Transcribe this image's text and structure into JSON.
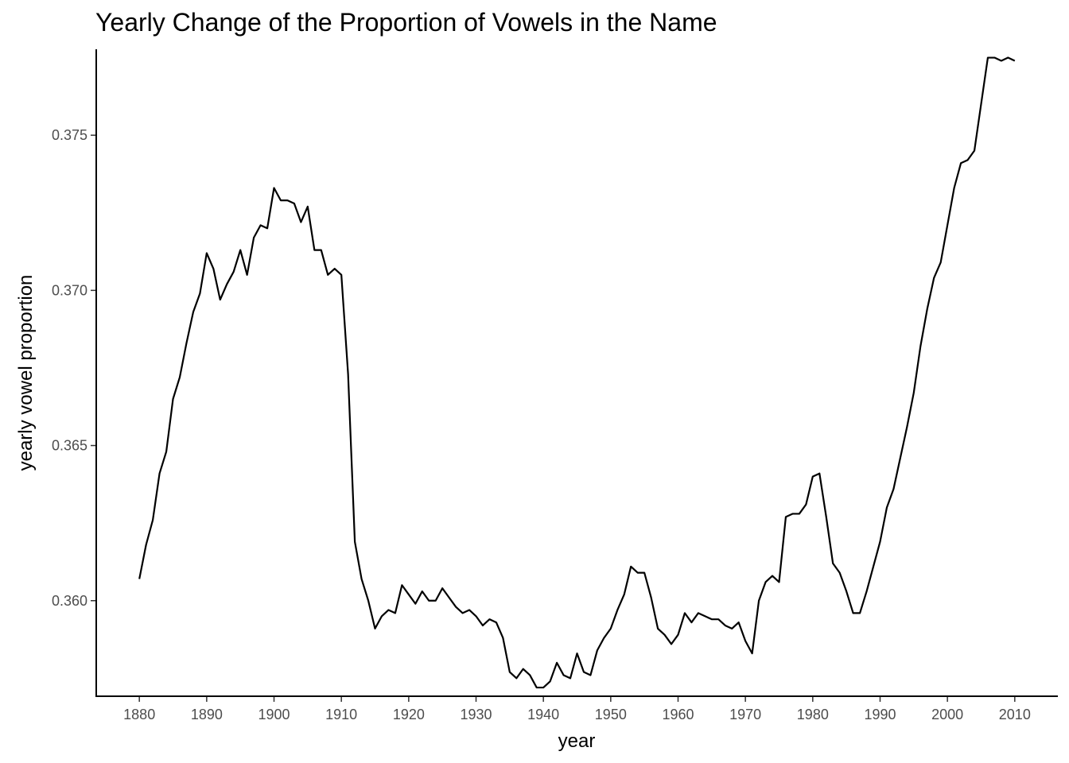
{
  "chart_data": {
    "type": "line",
    "title": "Yearly Change of the Proportion of Vowels in the Name",
    "xlabel": "year",
    "ylabel": "yearly vowel proportion",
    "xlim": [
      1873.6,
      2016.4
    ],
    "ylim": [
      0.35692,
      0.37777
    ],
    "x_ticks": [
      1880,
      1890,
      1900,
      1910,
      1920,
      1930,
      1940,
      1950,
      1960,
      1970,
      1980,
      1990,
      2000,
      2010
    ],
    "y_ticks": [
      0.36,
      0.365,
      0.37,
      0.375
    ],
    "y_tick_labels": [
      "0.360",
      "0.365",
      "0.370",
      "0.375"
    ],
    "grid": false,
    "legend": "none",
    "line_color": "#000000",
    "series": [
      {
        "x": [
          1880,
          1881,
          1882,
          1883,
          1884,
          1885,
          1886,
          1887,
          1888,
          1889,
          1890,
          1891,
          1892,
          1893,
          1894,
          1895,
          1896,
          1897,
          1898,
          1899,
          1900,
          1901,
          1902,
          1903,
          1904,
          1905,
          1906,
          1907,
          1908,
          1909,
          1910,
          1911,
          1912,
          1913,
          1914,
          1915,
          1916,
          1917,
          1918,
          1919,
          1920,
          1921,
          1922,
          1923,
          1924,
          1925,
          1926,
          1927,
          1928,
          1929,
          1930,
          1931,
          1932,
          1933,
          1934,
          1935,
          1936,
          1937,
          1938,
          1939,
          1940,
          1941,
          1942,
          1943,
          1944,
          1945,
          1946,
          1947,
          1948,
          1949,
          1950,
          1951,
          1952,
          1953,
          1954,
          1955,
          1956,
          1957,
          1958,
          1959,
          1960,
          1961,
          1962,
          1963,
          1964,
          1965,
          1966,
          1967,
          1968,
          1969,
          1970,
          1971,
          1972,
          1973,
          1974,
          1975,
          1976,
          1977,
          1978,
          1979,
          1980,
          1981,
          1982,
          1983,
          1984,
          1985,
          1986,
          1987,
          1988,
          1989,
          1990,
          1991,
          1992,
          1993,
          1994,
          1995,
          1996,
          1997,
          1998,
          1999,
          2000,
          2001,
          2002,
          2003,
          2004,
          2005,
          2006,
          2007,
          2008,
          2009,
          2010
        ],
        "y": [
          0.3607,
          0.3618,
          0.3626,
          0.3641,
          0.3648,
          0.3665,
          0.3672,
          0.3683,
          0.3693,
          0.3699,
          0.3712,
          0.3707,
          0.3697,
          0.3702,
          0.3706,
          0.3713,
          0.3705,
          0.3717,
          0.3721,
          0.372,
          0.3733,
          0.3729,
          0.3729,
          0.3728,
          0.3722,
          0.3727,
          0.3713,
          0.3713,
          0.3705,
          0.3707,
          0.3705,
          0.3673,
          0.3619,
          0.3607,
          0.36,
          0.3591,
          0.3595,
          0.3597,
          0.3596,
          0.3605,
          0.3602,
          0.3599,
          0.3603,
          0.36,
          0.36,
          0.3604,
          0.3601,
          0.3598,
          0.3596,
          0.3597,
          0.3595,
          0.3592,
          0.3594,
          0.3593,
          0.3588,
          0.3577,
          0.3575,
          0.3578,
          0.3576,
          0.3572,
          0.3572,
          0.3574,
          0.358,
          0.3576,
          0.3575,
          0.3583,
          0.3577,
          0.3576,
          0.3584,
          0.3588,
          0.3591,
          0.3597,
          0.3602,
          0.3611,
          0.3609,
          0.3609,
          0.3601,
          0.3591,
          0.3589,
          0.3586,
          0.3589,
          0.3596,
          0.3593,
          0.3596,
          0.3595,
          0.3594,
          0.3594,
          0.3592,
          0.3591,
          0.3593,
          0.3587,
          0.3583,
          0.36,
          0.3606,
          0.3608,
          0.3606,
          0.3627,
          0.3628,
          0.3628,
          0.3631,
          0.364,
          0.3641,
          0.3627,
          0.3612,
          0.3609,
          0.3603,
          0.3596,
          0.3596,
          0.3603,
          0.3611,
          0.3619,
          0.363,
          0.3636,
          0.3646,
          0.3656,
          0.3667,
          0.3682,
          0.3694,
          0.3704,
          0.3709,
          0.3721,
          0.3733,
          0.3741,
          0.3742,
          0.3745,
          0.376,
          0.3775,
          0.3775,
          0.3774,
          0.3775,
          0.3774
        ]
      }
    ]
  }
}
